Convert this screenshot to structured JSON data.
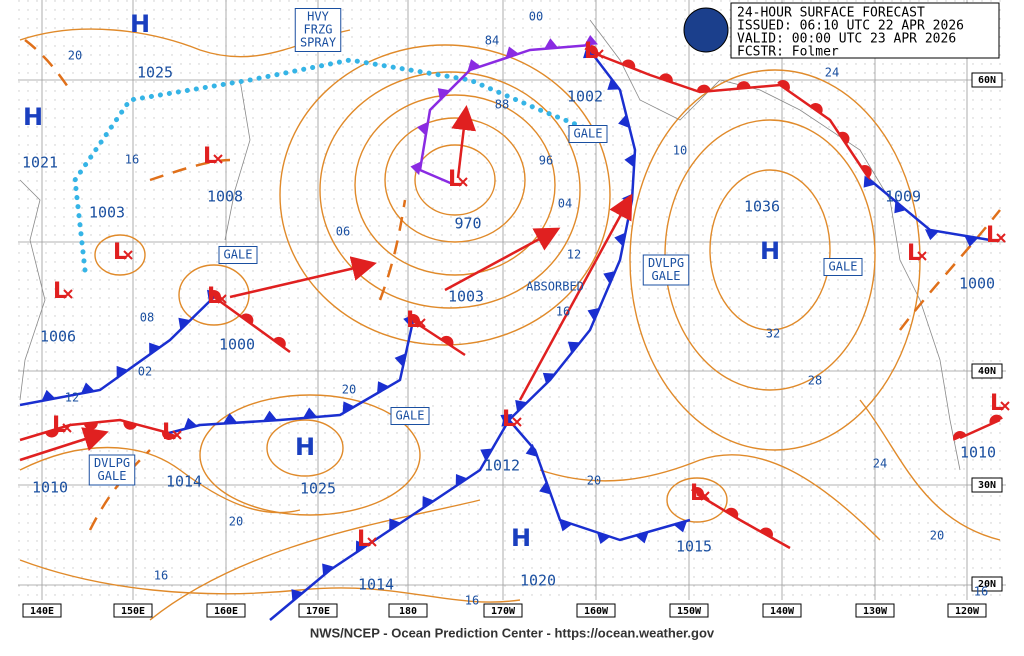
{
  "header": {
    "product": "24-HOUR SURFACE FORECAST",
    "issued": "ISSUED: 06:10 UTC 22 APR 2026",
    "valid": "VALID:  00:00 UTC 23 APR 2026",
    "forecaster": "FCSTR:  Folmer"
  },
  "pressures": [
    "1025",
    "1021",
    "1003",
    "1008",
    "1006",
    "1000",
    "970",
    "1003",
    "1002",
    "1036",
    "1009",
    "1000",
    "1010",
    "1012",
    "1015",
    "1020",
    "1014",
    "1025",
    "1014",
    "1010"
  ],
  "isobar_labels": [
    "20",
    "16",
    "08",
    "02",
    "06",
    "84",
    "88",
    "96",
    "04",
    "12",
    "16",
    "10",
    "32",
    "28",
    "24",
    "24",
    "20",
    "20",
    "20",
    "12",
    "20",
    "16",
    "16",
    "16",
    "00"
  ],
  "centers": [
    "H",
    "H",
    "H",
    "H",
    "H",
    "L",
    "L",
    "L",
    "L",
    "L",
    "L",
    "L",
    "L",
    "L",
    "L",
    "L",
    "L",
    "L",
    "L",
    "L"
  ],
  "warnings": [
    {
      "lines": [
        "HVY",
        "FRZG",
        "SPRAY"
      ]
    },
    {
      "lines": [
        "GALE"
      ]
    },
    {
      "lines": [
        "GALE"
      ]
    },
    {
      "lines": [
        "GALE"
      ]
    },
    {
      "lines": [
        "GALE"
      ]
    },
    {
      "lines": [
        "DVLPG",
        "GALE"
      ]
    },
    {
      "lines": [
        "DVLPG",
        "GALE"
      ]
    },
    {
      "lines": [
        "ABSORBED"
      ]
    }
  ],
  "longitudes": [
    "140E",
    "150E",
    "160E",
    "170E",
    "180",
    "170W",
    "160W",
    "150W",
    "140W",
    "130W",
    "120W"
  ],
  "latitudes": [
    "60N",
    "40N",
    "30N",
    "20N"
  ],
  "footer": "NWS/NCEP - Ocean Prediction Center - https://ocean.weather.gov"
}
